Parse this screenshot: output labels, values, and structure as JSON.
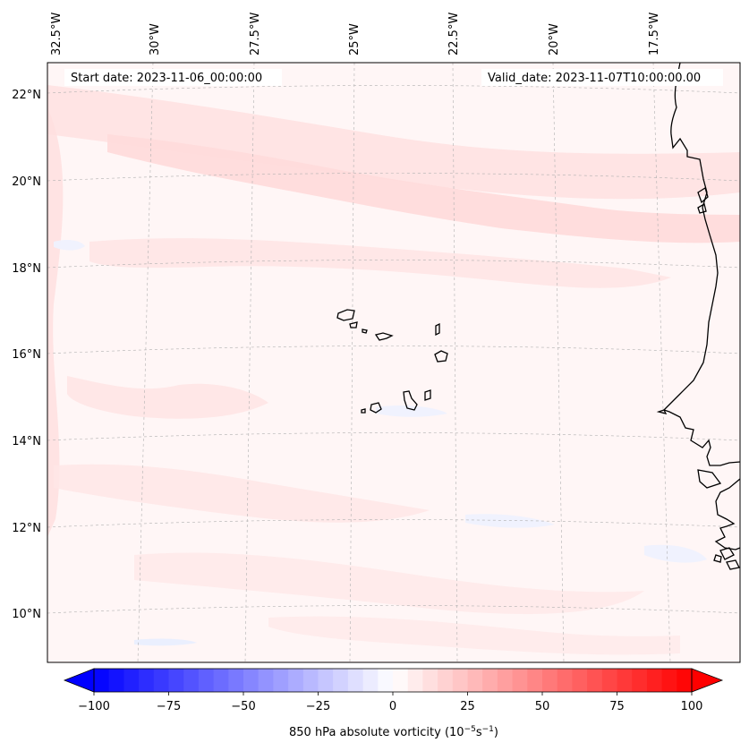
{
  "header": {
    "start_date": "Start date: 2023-11-06_00:00:00",
    "valid_date": "Valid_date: 2023-11-07T10:00:00.00"
  },
  "map": {
    "lon_labels": [
      "32.5°W",
      "30°W",
      "27.5°W",
      "25°W",
      "22.5°W",
      "20°W",
      "17.5°W"
    ],
    "lat_labels": [
      "22°N",
      "20°N",
      "18°N",
      "16°N",
      "14°N",
      "12°N",
      "10°N"
    ],
    "variable": "850 hPa absolute vorticity",
    "colors": {
      "frame": "#000000",
      "coast": "#000000",
      "gridline": "#b0b0b0",
      "background_tint": "#fff6f6"
    },
    "islands": [
      "Santo Antão",
      "São Vicente",
      "Santa Luzia",
      "São Nicolau",
      "Sal",
      "Boa Vista",
      "Maio",
      "Santiago",
      "Fogo",
      "Brava"
    ]
  },
  "colorbar": {
    "label": "850 hPa absolute vorticity (10",
    "label_exp1": "−5",
    "label_mid": "s",
    "label_exp2": "−1",
    "label_end": ")",
    "min": -100,
    "max": 100,
    "tick_values": [
      -100,
      -75,
      -50,
      -25,
      0,
      25,
      50,
      75,
      100
    ],
    "tick_labels": [
      "−100",
      "−75",
      "−50",
      "−25",
      "0",
      "25",
      "50",
      "75",
      "100"
    ],
    "colormap": "bwr",
    "n_levels": 40
  }
}
